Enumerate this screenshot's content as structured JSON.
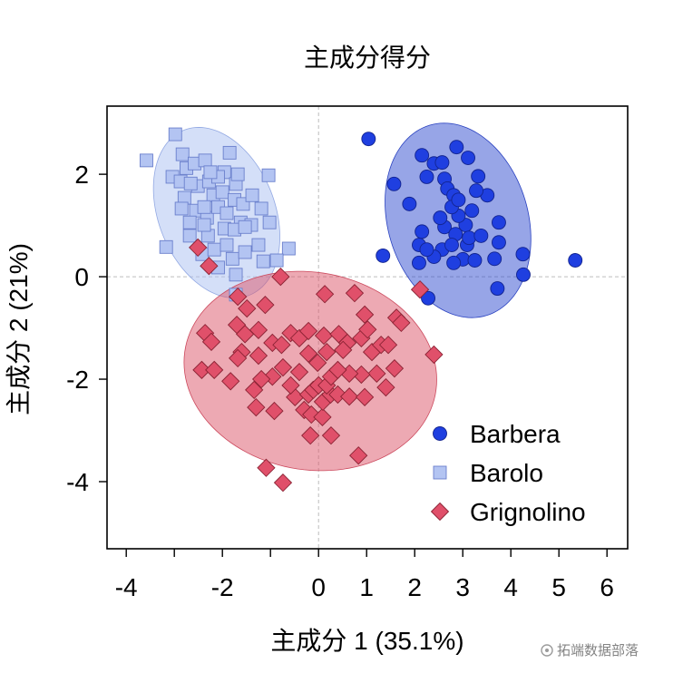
{
  "chart_data": {
    "type": "scatter",
    "title": "主成分得分",
    "xlabel": "主成分 1 (35.1%)",
    "ylabel": "主成分 2 (21%)",
    "xlim": [
      -4.4,
      6.43
    ],
    "ylim": [
      -5.31,
      3.33
    ],
    "xticks": [
      -4,
      -3,
      -2,
      -1,
      0,
      1,
      2,
      3,
      4,
      5,
      6
    ],
    "xtick_labels": [
      "-4",
      "",
      "-2",
      "",
      "0",
      "1",
      "2",
      "3",
      "4",
      "5",
      "6"
    ],
    "yticks": [
      2,
      0,
      -2,
      -4
    ],
    "ytick_labels": [
      "2",
      "0",
      "-2",
      "-4"
    ],
    "grid": false,
    "reference_lines": {
      "x": 0,
      "y": 0,
      "style": "dashed",
      "color": "#bdbdbd"
    },
    "legend_position": "bottom-right",
    "series": [
      {
        "name": "Barbera",
        "marker": "circle",
        "color": "#1f3fe0",
        "edge_color": "#13248f",
        "points": [
          [
            1.04,
            2.69
          ],
          [
            1.57,
            1.81
          ],
          [
            1.34,
            0.41
          ],
          [
            1.89,
            1.42
          ],
          [
            2.09,
            0.62
          ],
          [
            2.15,
            2.37
          ],
          [
            2.25,
            1.95
          ],
          [
            2.4,
            2.21
          ],
          [
            2.57,
            2.23
          ],
          [
            2.62,
            1.91
          ],
          [
            2.68,
            1.72
          ],
          [
            2.87,
            2.53
          ],
          [
            2.81,
            1.59
          ],
          [
            3.11,
            2.32
          ],
          [
            3.32,
            1.96
          ],
          [
            3.51,
            1.59
          ],
          [
            3.19,
            1.29
          ],
          [
            3.06,
            1.01
          ],
          [
            2.91,
            1.19
          ],
          [
            2.77,
            1.36
          ],
          [
            2.62,
            0.97
          ],
          [
            2.85,
            0.83
          ],
          [
            2.57,
            0.53
          ],
          [
            2.4,
            0.39
          ],
          [
            2.77,
            0.62
          ],
          [
            3.09,
            0.62
          ],
          [
            3.0,
            0.34
          ],
          [
            3.25,
            0.32
          ],
          [
            3.13,
            0.76
          ],
          [
            3.38,
            0.8
          ],
          [
            3.75,
            1.06
          ],
          [
            3.75,
            0.67
          ],
          [
            3.66,
            0.35
          ],
          [
            4.25,
            0.44
          ],
          [
            4.26,
            0.04
          ],
          [
            3.72,
            -0.23
          ],
          [
            5.34,
            0.32
          ],
          [
            2.28,
            -0.42
          ],
          [
            2.09,
            0.27
          ],
          [
            2.15,
            0.88
          ],
          [
            2.53,
            1.15
          ],
          [
            2.91,
            1.5
          ],
          [
            3.28,
            1.68
          ],
          [
            2.81,
            0.27
          ],
          [
            2.25,
            0.53
          ]
        ]
      },
      {
        "name": "Barolo",
        "marker": "square",
        "color": "#b3c4f2",
        "edge_color": "#6a7fcc",
        "points": [
          [
            -3.58,
            2.27
          ],
          [
            -2.98,
            2.78
          ],
          [
            -3.17,
            0.58
          ],
          [
            -2.83,
            2.39
          ],
          [
            -3.04,
            1.95
          ],
          [
            -2.87,
            1.86
          ],
          [
            -2.75,
            2.12
          ],
          [
            -2.58,
            2.21
          ],
          [
            -2.36,
            2.27
          ],
          [
            -1.85,
            2.42
          ],
          [
            -1.96,
            2.04
          ],
          [
            -1.72,
            1.81
          ],
          [
            -1.04,
            1.98
          ],
          [
            -2.79,
            1.54
          ],
          [
            -2.51,
            1.77
          ],
          [
            -2.28,
            1.86
          ],
          [
            -2.19,
            1.59
          ],
          [
            -2.0,
            1.65
          ],
          [
            -1.75,
            1.5
          ],
          [
            -1.57,
            1.42
          ],
          [
            -2.55,
            1.29
          ],
          [
            -2.32,
            1.15
          ],
          [
            -2.09,
            1.36
          ],
          [
            -1.91,
            1.24
          ],
          [
            -1.62,
            1.06
          ],
          [
            -1.4,
            1.01
          ],
          [
            -1.02,
            1.06
          ],
          [
            -2.68,
            1.06
          ],
          [
            -2.3,
            0.8
          ],
          [
            -1.96,
            0.94
          ],
          [
            -1.75,
            0.92
          ],
          [
            -1.53,
            0.97
          ],
          [
            -1.25,
            0.62
          ],
          [
            -0.62,
            0.55
          ],
          [
            -2.42,
            0.44
          ],
          [
            -2.17,
            0.53
          ],
          [
            -1.79,
            0.35
          ],
          [
            -1.53,
            0.48
          ],
          [
            -1.15,
            0.3
          ],
          [
            -1.72,
            0.04
          ],
          [
            -1.72,
            -0.35
          ],
          [
            -0.87,
            0.32
          ],
          [
            -2.09,
            0.18
          ],
          [
            -2.68,
            0.8
          ],
          [
            -2.38,
            1.36
          ],
          [
            -2.85,
            1.33
          ],
          [
            -1.19,
            1.33
          ],
          [
            -1.38,
            1.59
          ],
          [
            -2.09,
            1.95
          ],
          [
            -2.25,
            2.04
          ],
          [
            -2.66,
            1.82
          ],
          [
            -1.68,
            2.0
          ],
          [
            -2.38,
            1.01
          ],
          [
            -1.91,
            0.62
          ]
        ]
      },
      {
        "name": "Grignolino",
        "marker": "diamond",
        "color": "#e0506a",
        "edge_color": "#8a2233",
        "points": [
          [
            -2.51,
            0.57
          ],
          [
            -2.28,
            0.21
          ],
          [
            -0.79,
            0.0
          ],
          [
            -1.11,
            -0.55
          ],
          [
            0.13,
            -0.34
          ],
          [
            0.75,
            -0.32
          ],
          [
            2.11,
            -0.25
          ],
          [
            -1.68,
            -0.39
          ],
          [
            -2.36,
            -1.1
          ],
          [
            -2.23,
            -1.27
          ],
          [
            -2.43,
            -1.82
          ],
          [
            -2.17,
            -1.82
          ],
          [
            -1.7,
            -0.94
          ],
          [
            -1.49,
            -0.62
          ],
          [
            -1.53,
            -1.12
          ],
          [
            -1.25,
            -1.04
          ],
          [
            -1.6,
            -1.47
          ],
          [
            -1.25,
            -1.54
          ],
          [
            -0.96,
            -1.29
          ],
          [
            -0.77,
            -1.33
          ],
          [
            -0.58,
            -1.1
          ],
          [
            -0.4,
            -1.2
          ],
          [
            -0.74,
            -1.77
          ],
          [
            -0.96,
            -1.95
          ],
          [
            -1.19,
            -2.0
          ],
          [
            -1.34,
            -2.21
          ],
          [
            -1.3,
            -2.55
          ],
          [
            -0.92,
            -2.62
          ],
          [
            -0.49,
            -2.35
          ],
          [
            -0.3,
            -2.6
          ],
          [
            -0.15,
            -2.69
          ],
          [
            0.08,
            -2.74
          ],
          [
            0.09,
            -2.44
          ],
          [
            0.25,
            -2.3
          ],
          [
            0.4,
            -2.3
          ],
          [
            0.64,
            -2.34
          ],
          [
            -0.21,
            -2.3
          ],
          [
            -0.11,
            -2.21
          ],
          [
            0.0,
            -2.12
          ],
          [
            0.17,
            -2.12
          ],
          [
            0.26,
            -1.95
          ],
          [
            -0.02,
            -1.68
          ],
          [
            0.17,
            -1.47
          ],
          [
            0.11,
            -1.15
          ],
          [
            -0.21,
            -1.5
          ],
          [
            -0.4,
            -1.86
          ],
          [
            0.42,
            -1.12
          ],
          [
            0.6,
            -1.29
          ],
          [
            0.89,
            -1.2
          ],
          [
            0.96,
            -0.74
          ],
          [
            1.11,
            -1.47
          ],
          [
            1.3,
            -1.33
          ],
          [
            1.45,
            -1.33
          ],
          [
            1.62,
            -0.8
          ],
          [
            1.72,
            -0.9
          ],
          [
            1.21,
            -1.89
          ],
          [
            1.4,
            -2.16
          ],
          [
            1.58,
            -1.79
          ],
          [
            0.89,
            -1.91
          ],
          [
            0.64,
            -1.89
          ],
          [
            0.4,
            -1.82
          ],
          [
            0.96,
            -2.35
          ],
          [
            2.4,
            -1.52
          ],
          [
            0.26,
            -3.1
          ],
          [
            -0.17,
            -3.1
          ],
          [
            0.83,
            -3.49
          ],
          [
            -1.09,
            -3.73
          ],
          [
            -0.74,
            -4.02
          ],
          [
            -1.83,
            -2.04
          ],
          [
            -1.68,
            -1.59
          ],
          [
            0.51,
            -1.43
          ],
          [
            -0.58,
            -2.12
          ],
          [
            1.02,
            -1.03
          ],
          [
            -0.21,
            -1.06
          ]
        ]
      }
    ],
    "ellipses": [
      {
        "series": "Barolo",
        "center": [
          -2.12,
          1.25
        ],
        "semi_axes": [
          1.75,
          1.2
        ],
        "angle_deg": -65,
        "fill": "#a9c0f2",
        "edge": "#93a9e3"
      },
      {
        "series": "Barbera",
        "center": [
          2.9,
          1.1
        ],
        "semi_axes": [
          1.95,
          1.45
        ],
        "angle_deg": -70,
        "fill": "#2f4bd0",
        "edge": "#2a42c0"
      },
      {
        "series": "Grignolino",
        "center": [
          -0.17,
          -1.84
        ],
        "semi_axes": [
          2.64,
          1.93
        ],
        "angle_deg": -8,
        "fill": "#dc5468",
        "edge": "#cc4a5e"
      }
    ]
  },
  "watermark": {
    "text": "拓端数据部落"
  }
}
